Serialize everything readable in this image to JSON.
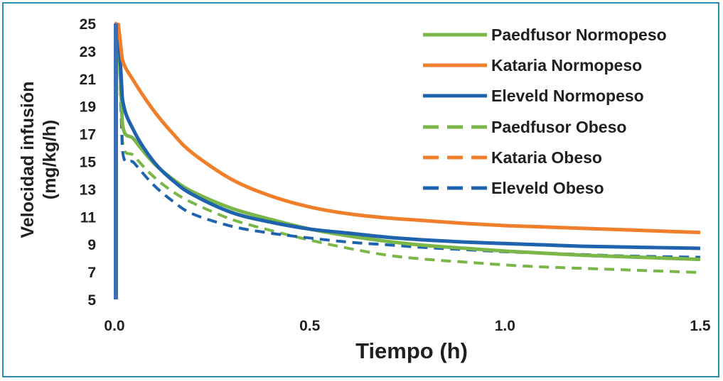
{
  "colors": {
    "frame": "#2b8fb0",
    "green": "#7ab648",
    "orange": "#f07f2c",
    "blue": "#1f63ae",
    "axis": "#3a6fb5"
  },
  "chart_data": {
    "type": "line",
    "title": "",
    "xlabel": "Tiempo (h)",
    "ylabel_line1": "Velocidad infusión",
    "ylabel_line2": "(mg/kg/h)",
    "xlim": [
      0,
      1.5
    ],
    "ylim": [
      5,
      25
    ],
    "xticks": [
      0,
      0.5,
      1,
      1.5
    ],
    "xtick_labels": [
      "0.0",
      "0.5",
      "1.0",
      "1.5"
    ],
    "yticks": [
      5,
      7,
      9,
      11,
      13,
      15,
      17,
      19,
      21,
      23,
      25
    ],
    "ytick_labels": [
      "5",
      "7",
      "9",
      "11",
      "13",
      "15",
      "17",
      "19",
      "21",
      "23",
      "25"
    ],
    "grid": false,
    "legend_position": "top-right",
    "series": [
      {
        "name": "Paedfusor Normopeso",
        "color": "green",
        "dash": false,
        "x": [
          0.0,
          0.01,
          0.02,
          0.05,
          0.1,
          0.15,
          0.2,
          0.3,
          0.4,
          0.5,
          0.6,
          0.7,
          0.8,
          0.9,
          1.0,
          1.1,
          1.2,
          1.3,
          1.4,
          1.5
        ],
        "y": [
          25,
          24.9,
          17.8,
          16.6,
          14.9,
          13.7,
          12.8,
          11.6,
          10.8,
          10.1,
          9.6,
          9.2,
          8.9,
          8.7,
          8.5,
          8.35,
          8.2,
          8.1,
          8.0,
          7.9
        ]
      },
      {
        "name": "Kataria Normopeso",
        "color": "orange",
        "dash": false,
        "x": [
          0.0,
          0.01,
          0.02,
          0.05,
          0.1,
          0.15,
          0.2,
          0.3,
          0.4,
          0.5,
          0.6,
          0.7,
          0.8,
          0.9,
          1.0,
          1.1,
          1.2,
          1.3,
          1.4,
          1.5
        ],
        "y": [
          25,
          24.9,
          22.4,
          20.8,
          18.7,
          17.0,
          15.6,
          13.7,
          12.5,
          11.7,
          11.2,
          10.9,
          10.7,
          10.5,
          10.35,
          10.25,
          10.15,
          10.05,
          9.95,
          9.85
        ]
      },
      {
        "name": "Eleveld Normopeso",
        "color": "blue",
        "dash": false,
        "x": [
          0.0,
          0.01,
          0.02,
          0.05,
          0.1,
          0.15,
          0.2,
          0.3,
          0.4,
          0.5,
          0.6,
          0.7,
          0.8,
          0.9,
          1.0,
          1.1,
          1.2,
          1.3,
          1.4,
          1.5
        ],
        "y": [
          25,
          24.9,
          19.6,
          17.2,
          15.0,
          13.6,
          12.6,
          11.3,
          10.6,
          10.1,
          9.8,
          9.5,
          9.3,
          9.15,
          9.05,
          8.95,
          8.85,
          8.8,
          8.75,
          8.7
        ]
      },
      {
        "name": "Paedfusor Obeso",
        "color": "green",
        "dash": true,
        "x": [
          0.0,
          0.01,
          0.02,
          0.05,
          0.1,
          0.15,
          0.2,
          0.3,
          0.4,
          0.5,
          0.6,
          0.7,
          0.8,
          0.9,
          1.0,
          1.1,
          1.2,
          1.3,
          1.4,
          1.5
        ],
        "y": [
          25,
          24.9,
          16.6,
          15.4,
          13.9,
          12.8,
          12.0,
          10.8,
          10.0,
          9.3,
          8.7,
          8.2,
          7.9,
          7.7,
          7.5,
          7.35,
          7.25,
          7.15,
          7.05,
          6.95
        ]
      },
      {
        "name": "Kataria Obeso",
        "color": "orange",
        "dash": true,
        "x": [],
        "y": []
      },
      {
        "name": "Eleveld Obeso",
        "color": "blue",
        "dash": true,
        "x": [
          0.0,
          0.01,
          0.02,
          0.05,
          0.1,
          0.15,
          0.2,
          0.3,
          0.4,
          0.5,
          0.6,
          0.7,
          0.8,
          0.9,
          1.0,
          1.1,
          1.2,
          1.3,
          1.4,
          1.5
        ],
        "y": [
          25,
          24.9,
          15.9,
          14.9,
          13.3,
          12.1,
          11.2,
          10.3,
          9.8,
          9.45,
          9.15,
          8.95,
          8.75,
          8.6,
          8.45,
          8.35,
          8.25,
          8.15,
          8.1,
          8.05
        ]
      }
    ]
  }
}
